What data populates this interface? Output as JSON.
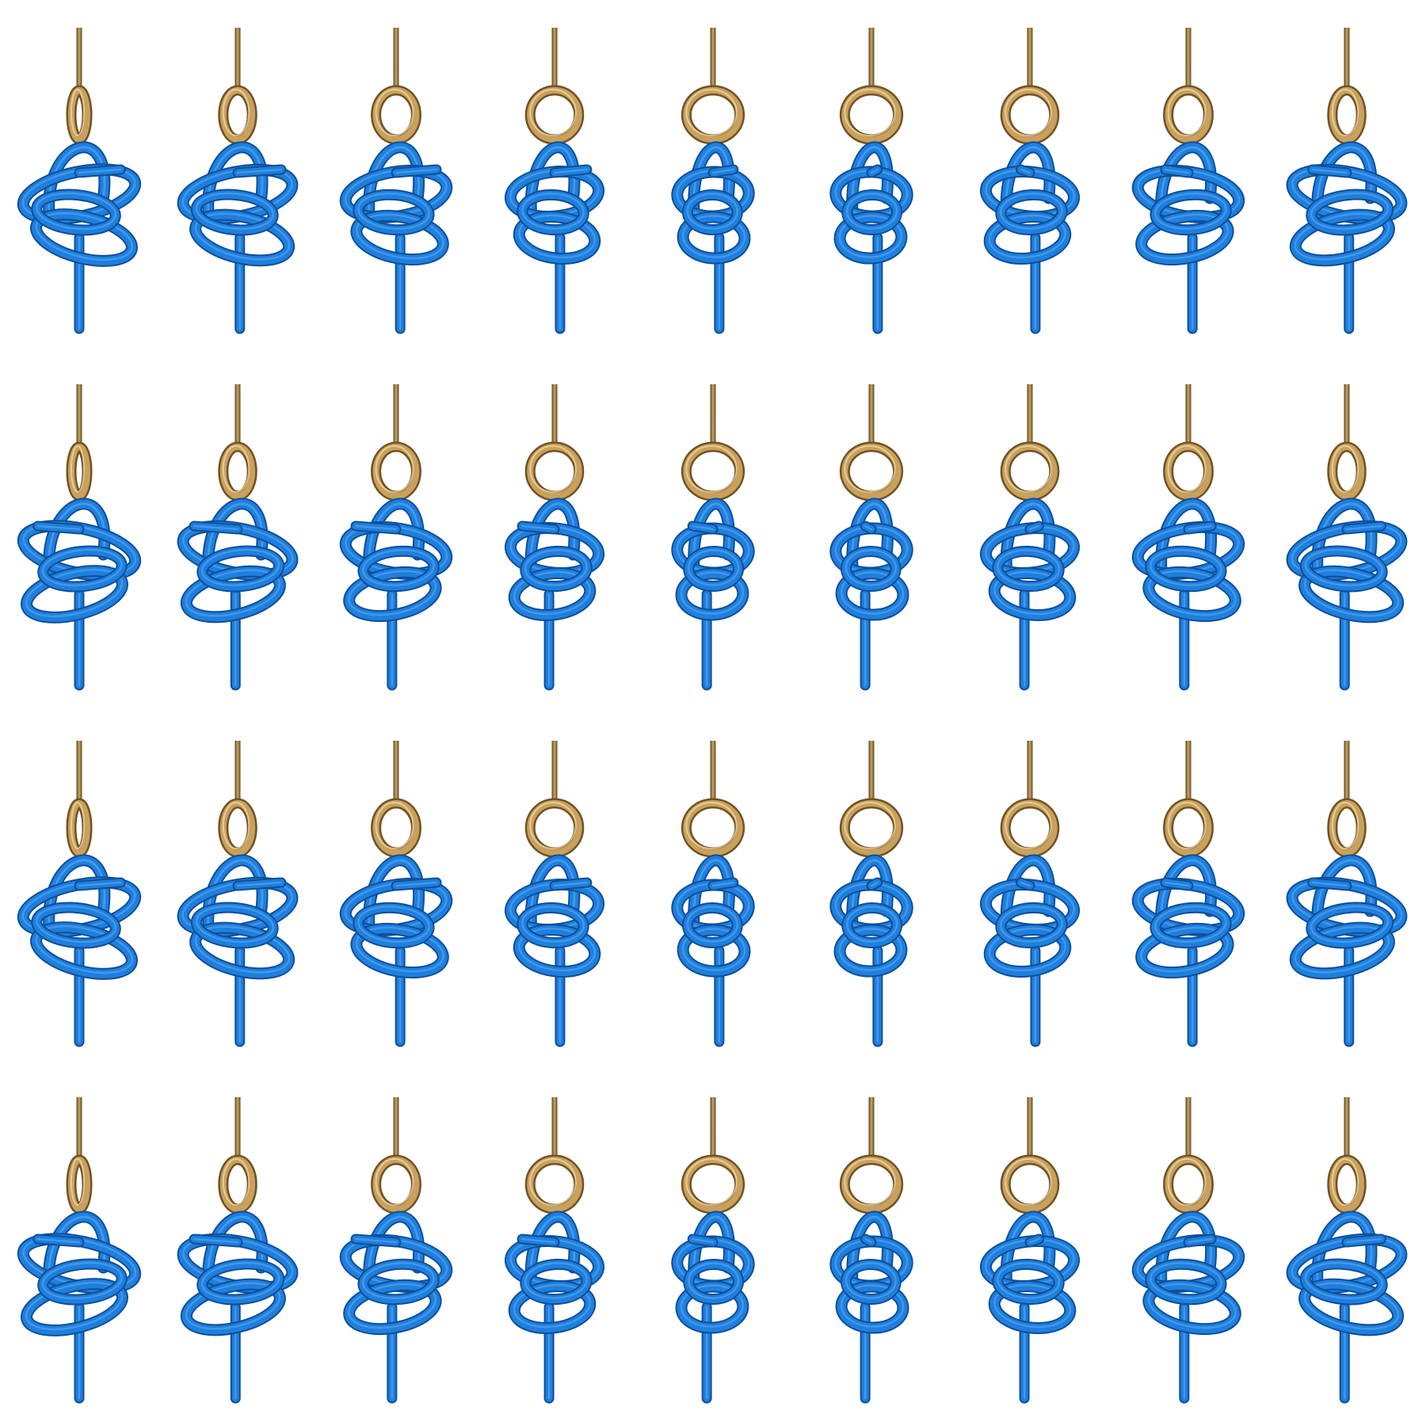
{
  "grid": {
    "rows": 4,
    "cols": 9
  },
  "colors": {
    "background": "#ffffff",
    "rope": "#1f7fdc",
    "rope_highlight": "#5fb1ff",
    "rope_shadow": "#0f4e98",
    "ring": "#c9a15c",
    "ring_shadow": "#6f5226",
    "hook_rod": "#a8874e"
  },
  "icons": {
    "hook": "hook-rod-icon",
    "ring": "brass-ring-icon",
    "knot": "rope-knot-icon"
  },
  "frames": [
    {
      "r": 0,
      "c": 0,
      "v": 0
    },
    {
      "r": 0,
      "c": 1,
      "v": 1
    },
    {
      "r": 0,
      "c": 2,
      "v": 2
    },
    {
      "r": 0,
      "c": 3,
      "v": 3
    },
    {
      "r": 0,
      "c": 4,
      "v": 4
    },
    {
      "r": 0,
      "c": 5,
      "v": 5
    },
    {
      "r": 0,
      "c": 6,
      "v": 6
    },
    {
      "r": 0,
      "c": 7,
      "v": 7
    },
    {
      "r": 0,
      "c": 8,
      "v": 8
    },
    {
      "r": 1,
      "c": 0,
      "v": 9
    },
    {
      "r": 1,
      "c": 1,
      "v": 10
    },
    {
      "r": 1,
      "c": 2,
      "v": 11
    },
    {
      "r": 1,
      "c": 3,
      "v": 12
    },
    {
      "r": 1,
      "c": 4,
      "v": 13
    },
    {
      "r": 1,
      "c": 5,
      "v": 14
    },
    {
      "r": 1,
      "c": 6,
      "v": 15
    },
    {
      "r": 1,
      "c": 7,
      "v": 16
    },
    {
      "r": 1,
      "c": 8,
      "v": 17
    },
    {
      "r": 2,
      "c": 0,
      "v": 0
    },
    {
      "r": 2,
      "c": 1,
      "v": 1
    },
    {
      "r": 2,
      "c": 2,
      "v": 2
    },
    {
      "r": 2,
      "c": 3,
      "v": 3
    },
    {
      "r": 2,
      "c": 4,
      "v": 4
    },
    {
      "r": 2,
      "c": 5,
      "v": 5
    },
    {
      "r": 2,
      "c": 6,
      "v": 6
    },
    {
      "r": 2,
      "c": 7,
      "v": 7
    },
    {
      "r": 2,
      "c": 8,
      "v": 8
    },
    {
      "r": 3,
      "c": 0,
      "v": 9
    },
    {
      "r": 3,
      "c": 1,
      "v": 10
    },
    {
      "r": 3,
      "c": 2,
      "v": 11
    },
    {
      "r": 3,
      "c": 3,
      "v": 12
    },
    {
      "r": 3,
      "c": 4,
      "v": 13
    },
    {
      "r": 3,
      "c": 5,
      "v": 14
    },
    {
      "r": 3,
      "c": 6,
      "v": 15
    },
    {
      "r": 3,
      "c": 7,
      "v": 16
    },
    {
      "r": 3,
      "c": 8,
      "v": 17
    }
  ]
}
